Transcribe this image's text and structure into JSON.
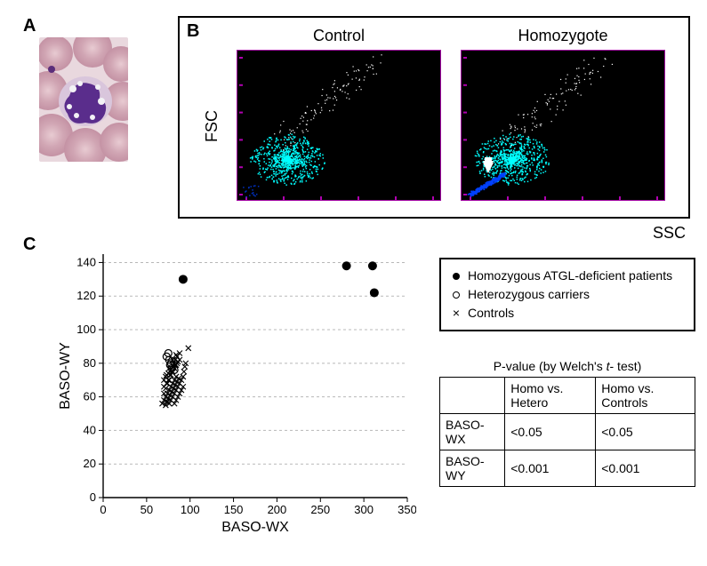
{
  "panelA": {
    "label": "A"
  },
  "panelB": {
    "label": "B",
    "fsc_label": "FSC",
    "ssc_label": "SSC",
    "plots": {
      "control": {
        "title": "Control"
      },
      "homozygote": {
        "title": "Homozygote"
      }
    },
    "plot_style": {
      "bg": "#000000",
      "frame": "#a000a0",
      "cluster_color": "#00ffff",
      "scatter_color": "#ffffff",
      "extra_pop_color": "#0040ff",
      "axis_tick_color": "#b000b0"
    }
  },
  "panelC": {
    "label": "C",
    "chart": {
      "type": "scatter",
      "xlabel": "BASO-WX",
      "ylabel": "BASO-WY",
      "x_ticks": [
        0,
        50,
        100,
        150,
        200,
        250,
        300,
        350
      ],
      "y_ticks": [
        0,
        20,
        40,
        60,
        80,
        100,
        120,
        140
      ],
      "xlim": [
        0,
        350
      ],
      "ylim": [
        0,
        145
      ],
      "label_fontsize": 16,
      "tick_fontsize": 13,
      "background_color": "#ffffff",
      "grid_color": "#b8b8b8",
      "grid_dash": "3,3",
      "axis_color": "#000000",
      "series": [
        {
          "name": "Homozygous ATGL-deficient patients",
          "marker": "filled-circle",
          "color": "#000000",
          "size": 5,
          "points": [
            [
              92,
              130
            ],
            [
              280,
              138
            ],
            [
              310,
              138
            ],
            [
              312,
              122
            ]
          ]
        },
        {
          "name": "Heterozygous carriers",
          "marker": "open-circle",
          "color": "#000000",
          "size": 4,
          "points": [
            [
              73,
              84
            ],
            [
              75,
              86
            ],
            [
              76,
              82
            ],
            [
              78,
              80
            ],
            [
              79,
              77
            ],
            [
              82,
              76
            ],
            [
              77,
              79
            ]
          ]
        },
        {
          "name": "Controls",
          "marker": "x",
          "color": "#000000",
          "size": 6,
          "points": [
            [
              68,
              56
            ],
            [
              70,
              58
            ],
            [
              72,
              60
            ],
            [
              74,
              62
            ],
            [
              76,
              64
            ],
            [
              78,
              66
            ],
            [
              80,
              68
            ],
            [
              82,
              70
            ],
            [
              84,
              72
            ],
            [
              73,
              57
            ],
            [
              75,
              59
            ],
            [
              77,
              61
            ],
            [
              79,
              63
            ],
            [
              81,
              65
            ],
            [
              83,
              67
            ],
            [
              85,
              69
            ],
            [
              87,
              71
            ],
            [
              70,
              62
            ],
            [
              72,
              65
            ],
            [
              74,
              68
            ],
            [
              76,
              70
            ],
            [
              78,
              73
            ],
            [
              80,
              75
            ],
            [
              82,
              77
            ],
            [
              84,
              79
            ],
            [
              86,
              81
            ],
            [
              73,
              68
            ],
            [
              75,
              70
            ],
            [
              77,
              73
            ],
            [
              79,
              75
            ],
            [
              81,
              78
            ],
            [
              83,
              79
            ],
            [
              85,
              80
            ],
            [
              88,
              82
            ],
            [
              72,
              55
            ],
            [
              74,
              57
            ],
            [
              78,
              58
            ],
            [
              82,
              62
            ],
            [
              86,
              66
            ],
            [
              90,
              70
            ],
            [
              93,
              75
            ],
            [
              95,
              80
            ],
            [
              98,
              89
            ],
            [
              76,
              56
            ],
            [
              80,
              60
            ],
            [
              84,
              64
            ],
            [
              88,
              68
            ],
            [
              92,
              72
            ],
            [
              94,
              78
            ],
            [
              70,
              66
            ],
            [
              72,
              72
            ],
            [
              75,
              74
            ],
            [
              78,
              76
            ],
            [
              80,
              79
            ],
            [
              83,
              82
            ],
            [
              85,
              84
            ],
            [
              88,
              86
            ],
            [
              82,
              56
            ],
            [
              84,
              58
            ],
            [
              86,
              60
            ],
            [
              88,
              62
            ],
            [
              90,
              64
            ],
            [
              92,
              66
            ],
            [
              70,
              70
            ],
            [
              73,
              73
            ],
            [
              76,
              77
            ],
            [
              80,
              82
            ],
            [
              84,
              85
            ]
          ]
        }
      ]
    },
    "legend": {
      "items": [
        {
          "symbol": "filled-circle",
          "label": "Homozygous ATGL-deficient patients"
        },
        {
          "symbol": "open-circle",
          "label": "Heterozygous carriers"
        },
        {
          "symbol": "x",
          "label": "Controls"
        }
      ]
    },
    "p_table": {
      "caption_prefix": "P-value (by Welch's ",
      "caption_t": "t",
      "caption_suffix": "- test)",
      "col_headers": [
        "",
        "Homo  vs. Hetero",
        "Homo vs. Controls"
      ],
      "rows": [
        [
          "BASO-WX",
          "<0.05",
          "<0.05"
        ],
        [
          "BASO-WY",
          "<0.001",
          "<0.001"
        ]
      ]
    }
  }
}
